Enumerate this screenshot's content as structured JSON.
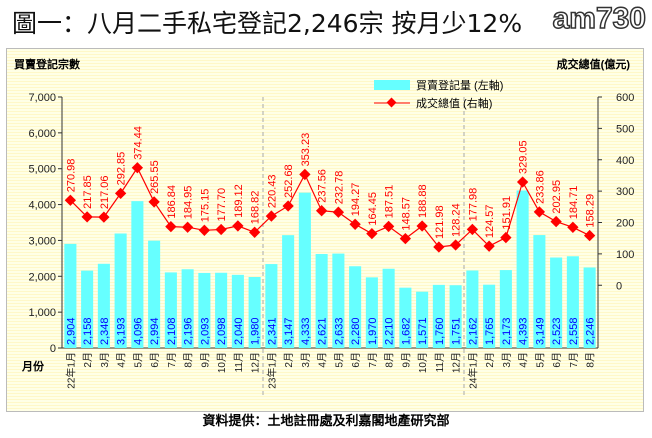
{
  "title": "圖一：八月二手私宅登記2,246宗 按月少12%",
  "logo": "am730",
  "footer": "資料提供：土地註冊處及利嘉閣地產研究部",
  "colors": {
    "bar": "#66ffff",
    "bar_label": "#0000ff",
    "line": "#ff0000"
  },
  "chart_data": {
    "type": "bar+line",
    "ylabel_left": "買賣登記宗數",
    "ylabel_right": "成交總值(億元)",
    "xlabel": "月份",
    "ylim_left": [
      0,
      7000
    ],
    "yticks_left": [
      "0",
      "1,000",
      "2,000",
      "3,000",
      "4,000",
      "5,000",
      "6,000",
      "7,000"
    ],
    "ylim_right": [
      -200,
      600
    ],
    "yticks_right": [
      "0",
      "100",
      "200",
      "300",
      "400",
      "500",
      "600"
    ],
    "legend_position": "top-center",
    "categories": [
      "22年1月",
      "2月",
      "3月",
      "4月",
      "5月",
      "6月",
      "7月",
      "8月",
      "9月",
      "10月",
      "11月",
      "12月",
      "23年1月",
      "2月",
      "3月",
      "4月",
      "5月",
      "6月",
      "7月",
      "8月",
      "9月",
      "10月",
      "11月",
      "12月",
      "24年1月",
      "2月",
      "3月",
      "4月",
      "5月",
      "6月",
      "7月",
      "8月"
    ],
    "series": [
      {
        "name": "買賣登記量 (左軸)",
        "type": "bar",
        "axis": "left",
        "values": [
          2904,
          2158,
          2348,
          3193,
          4096,
          2994,
          2108,
          2196,
          2093,
          2098,
          2040,
          1980,
          2341,
          3147,
          4333,
          2621,
          2633,
          2280,
          1970,
          2210,
          1682,
          1571,
          1760,
          1751,
          2162,
          1765,
          2173,
          4393,
          3149,
          2523,
          2558,
          2246
        ],
        "labels": [
          "2,904",
          "2,158",
          "2,348",
          "3,193",
          "4,096",
          "2,994",
          "2,108",
          "2,196",
          "2,093",
          "2,098",
          "2,040",
          "1,980",
          "2,341",
          "3,147",
          "4,333",
          "2,621",
          "2,633",
          "2,280",
          "1,970",
          "2,210",
          "1,682",
          "1,571",
          "1,760",
          "1,751",
          "2,162",
          "1,765",
          "2,173",
          "4,393",
          "3,149",
          "2,523",
          "2,558",
          "2,246"
        ]
      },
      {
        "name": "成交總值 (右軸)",
        "type": "line",
        "axis": "right",
        "values": [
          270.98,
          217.85,
          217.06,
          292.85,
          374.44,
          265.55,
          186.84,
          184.95,
          175.15,
          177.7,
          189.12,
          168.82,
          220.43,
          252.68,
          353.23,
          237.56,
          232.78,
          194.27,
          164.45,
          187.51,
          148.57,
          188.88,
          121.98,
          128.24,
          177.98,
          124.57,
          151.91,
          329.05,
          233.86,
          202.95,
          184.71,
          158.29
        ],
        "labels": [
          "270.98",
          "217.85",
          "217.06",
          "292.85",
          "374.44",
          "265.55",
          "186.84",
          "184.95",
          "175.15",
          "177.70",
          "189.12",
          "168.82",
          "220.43",
          "252.68",
          "353.23",
          "237.56",
          "232.78",
          "194.27",
          "164.45",
          "187.51",
          "148.57",
          "188.88",
          "121.98",
          "128.24",
          "177.98",
          "124.57",
          "151.91",
          "329.05",
          "233.86",
          "202.95",
          "184.71",
          "158.29"
        ]
      }
    ]
  }
}
